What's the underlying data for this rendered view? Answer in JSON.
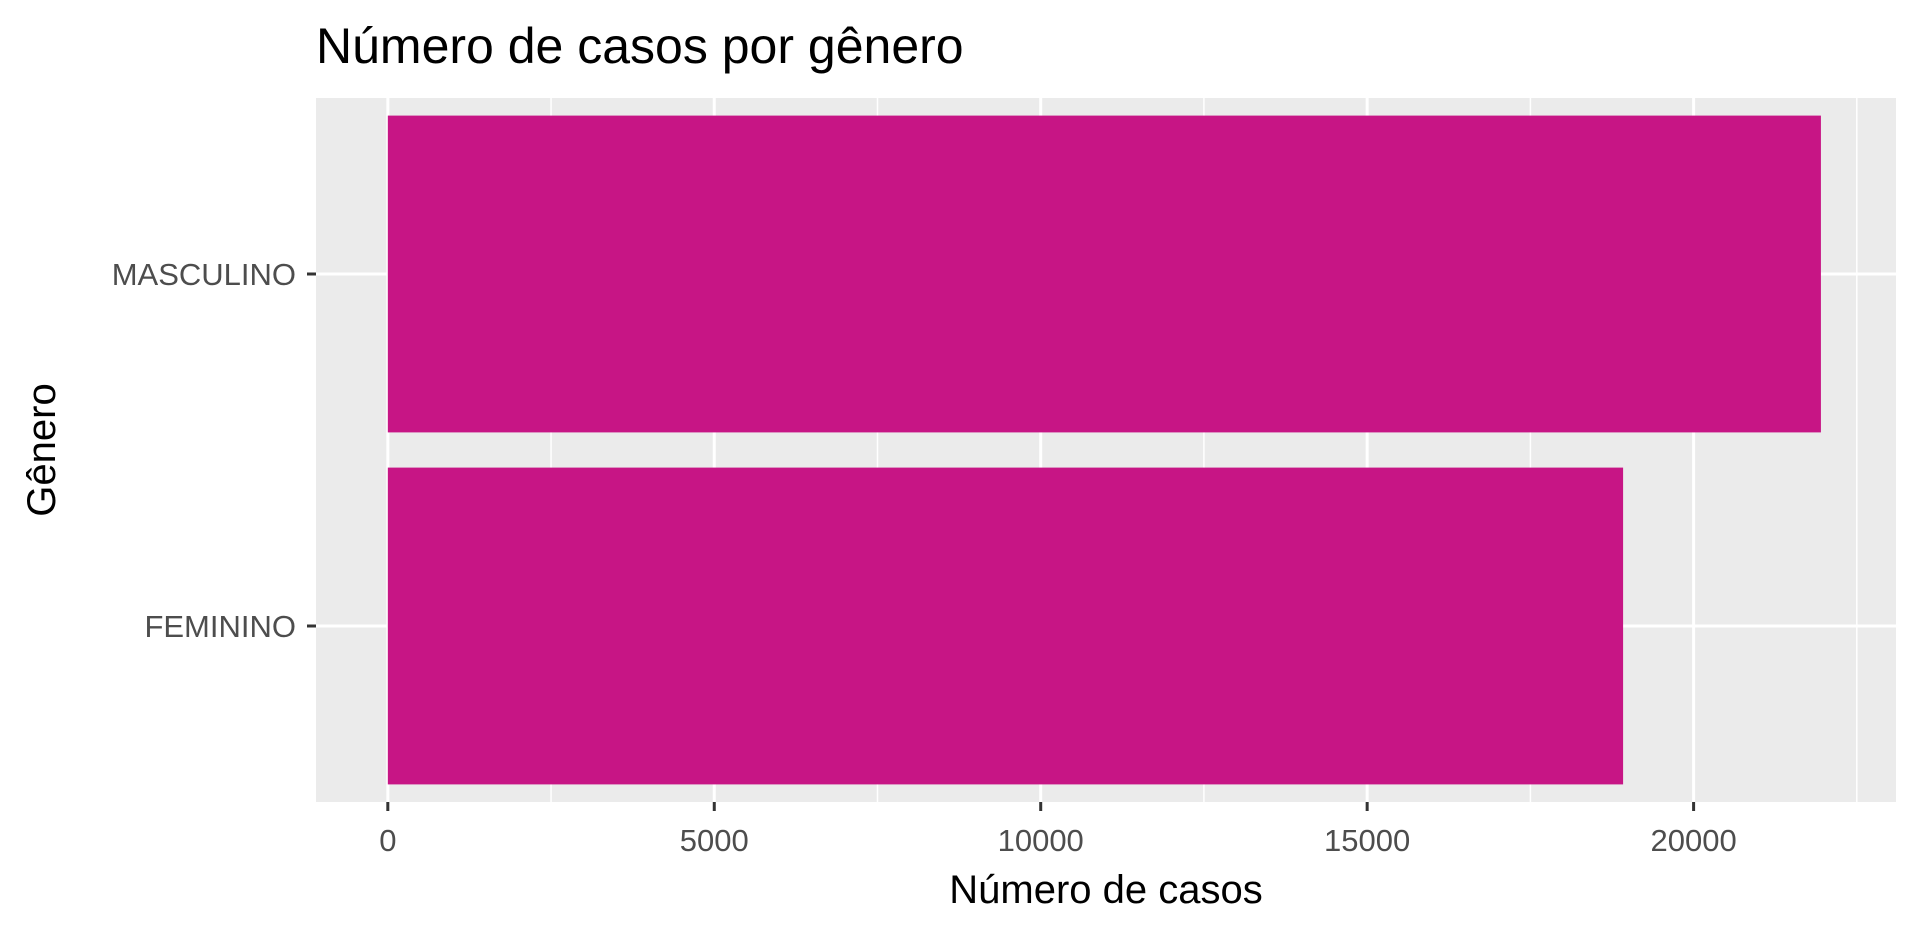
{
  "chart_data": {
    "type": "bar",
    "orientation": "horizontal",
    "title": "Número de casos por gênero",
    "xlabel": "Número de casos",
    "ylabel": "Gênero",
    "categories": [
      "MASCULINO",
      "FEMININO"
    ],
    "values": [
      21950,
      18920
    ],
    "xlim": [
      -1100,
      23100
    ],
    "xticks": [
      0,
      5000,
      10000,
      15000,
      20000
    ],
    "xtick_labels": [
      "0",
      "5000",
      "10000",
      "15000",
      "20000"
    ],
    "grid": true,
    "legend": "none",
    "colors": {
      "bar": "#C71585",
      "panel": "#EBEBEB",
      "grid": "#FFFFFF",
      "tick": "#333333"
    }
  }
}
